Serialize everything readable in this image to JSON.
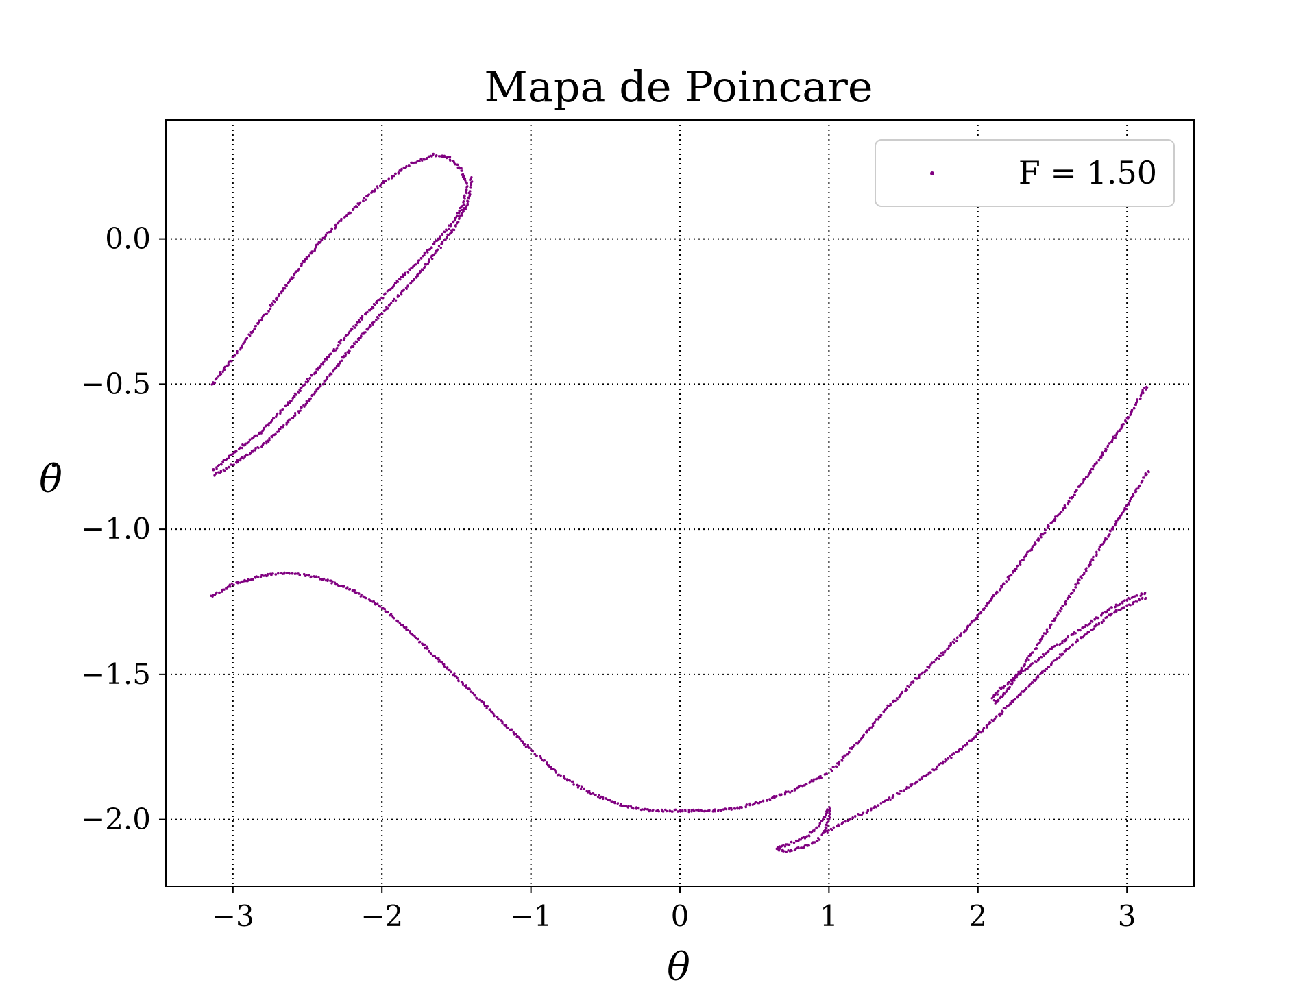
{
  "chart_data": {
    "type": "scatter",
    "title": "Mapa de Poincare",
    "xlabel": "θ",
    "ylabel": "θ̇",
    "xlim": [
      -3.45,
      3.45
    ],
    "ylim": [
      -2.23,
      0.41
    ],
    "xticks": [
      -3,
      -2,
      -1,
      0,
      1,
      2,
      3
    ],
    "xtick_labels": [
      "−3",
      "−2",
      "−1",
      "0",
      "1",
      "2",
      "3"
    ],
    "yticks": [
      0.0,
      -0.5,
      -1.0,
      -1.5,
      -2.0
    ],
    "ytick_labels": [
      "0.0",
      "−0.5",
      "−1.0",
      "−1.5",
      "−2.0"
    ],
    "grid": true,
    "legend": {
      "position": "top-right",
      "entries": [
        "F = 1.50"
      ]
    },
    "series": [
      {
        "name": "F = 1.50",
        "color": "#800080",
        "marker": "dot",
        "segments": [
          {
            "x": [
              -3.14,
              -3.0,
              -2.8,
              -2.6,
              -2.4,
              -2.2,
              -2.0,
              -1.8,
              -1.65,
              -1.55,
              -1.47,
              -1.43
            ],
            "y": [
              -0.5,
              -0.41,
              -0.27,
              -0.13,
              0.0,
              0.1,
              0.19,
              0.26,
              0.29,
              0.28,
              0.24,
              0.19
            ]
          },
          {
            "x": [
              -1.43,
              -1.45,
              -1.52,
              -1.62,
              -1.8,
              -2.0,
              -2.2,
              -2.4,
              -2.6,
              -2.8,
              -3.0,
              -3.14
            ],
            "y": [
              0.19,
              0.12,
              0.06,
              0.0,
              -0.1,
              -0.2,
              -0.31,
              -0.43,
              -0.55,
              -0.66,
              -0.74,
              -0.8
            ]
          },
          {
            "x": [
              -1.4,
              -1.42,
              -1.5,
              -1.6,
              -1.75,
              -1.95,
              -2.15,
              -2.35,
              -2.55,
              -2.75,
              -2.95,
              -3.14
            ],
            "y": [
              0.21,
              0.13,
              0.05,
              -0.02,
              -0.12,
              -0.23,
              -0.34,
              -0.47,
              -0.59,
              -0.69,
              -0.76,
              -0.82
            ]
          },
          {
            "x": [
              -3.14,
              -3.0,
              -2.8,
              -2.6,
              -2.4,
              -2.2,
              -2.0,
              -1.8,
              -1.6,
              -1.4,
              -1.2,
              -1.0,
              -0.8,
              -0.6,
              -0.4,
              -0.2,
              0.0,
              0.2,
              0.4,
              0.6,
              0.8,
              1.0
            ],
            "y": [
              -1.23,
              -1.19,
              -1.16,
              -1.15,
              -1.17,
              -1.21,
              -1.27,
              -1.36,
              -1.46,
              -1.56,
              -1.66,
              -1.76,
              -1.85,
              -1.91,
              -1.95,
              -1.97,
              -1.97,
              -1.97,
              -1.96,
              -1.93,
              -1.89,
              -1.84
            ]
          },
          {
            "x": [
              1.02,
              1.2,
              1.4,
              1.6,
              1.8,
              2.0,
              2.2,
              2.4,
              2.6,
              2.8,
              3.0,
              3.14
            ],
            "y": [
              -1.83,
              -1.73,
              -1.61,
              -1.51,
              -1.41,
              -1.3,
              -1.17,
              -1.04,
              -0.91,
              -0.77,
              -0.62,
              -0.5
            ]
          },
          {
            "x": [
              3.14,
              3.0,
              2.8,
              2.6,
              2.4,
              2.2,
              2.12,
              2.1,
              2.15,
              2.3,
              2.5,
              2.7,
              2.9,
              3.05,
              3.14
            ],
            "y": [
              -0.8,
              -0.92,
              -1.08,
              -1.24,
              -1.4,
              -1.55,
              -1.6,
              -1.58,
              -1.55,
              -1.49,
              -1.41,
              -1.34,
              -1.27,
              -1.23,
              -1.22
            ]
          },
          {
            "x": [
              0.65,
              0.75,
              0.85,
              0.92,
              0.97,
              1.0,
              1.0,
              0.98,
              0.95,
              1.0,
              1.1,
              1.3,
              1.5,
              1.7,
              1.9,
              2.1,
              2.3,
              2.5,
              2.7,
              2.9,
              3.1,
              3.14
            ],
            "y": [
              -2.1,
              -2.08,
              -2.06,
              -2.03,
              -1.99,
              -1.96,
              -1.99,
              -2.03,
              -2.05,
              -2.04,
              -2.01,
              -1.96,
              -1.9,
              -1.83,
              -1.75,
              -1.66,
              -1.56,
              -1.46,
              -1.37,
              -1.29,
              -1.24,
              -1.24
            ]
          },
          {
            "x": [
              0.65,
              0.7,
              0.8,
              0.9,
              0.95
            ],
            "y": [
              -2.1,
              -2.11,
              -2.1,
              -2.08,
              -2.06
            ]
          }
        ]
      }
    ]
  }
}
